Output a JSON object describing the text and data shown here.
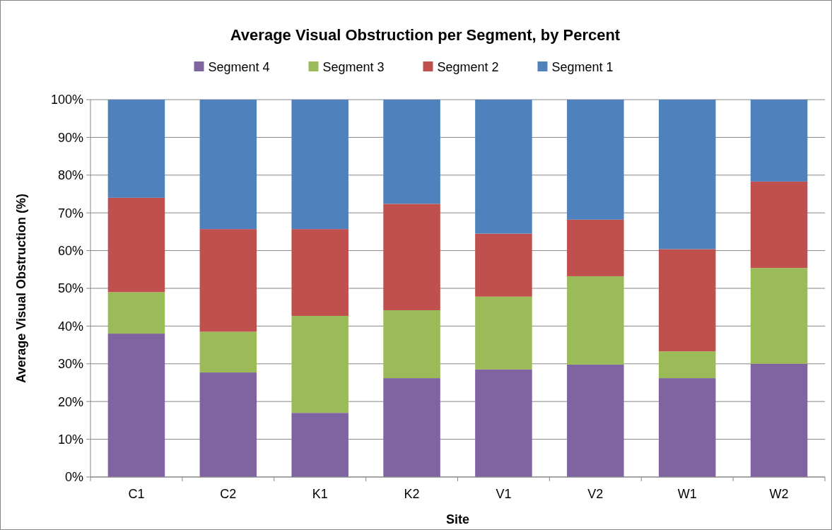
{
  "chart_data": {
    "type": "bar",
    "stacked": true,
    "title": "Average Visual Obstruction per Segment, by Percent",
    "xlabel": "Site",
    "ylabel": "Average Visual Obstruction (%)",
    "categories": [
      "C1",
      "C2",
      "K1",
      "K2",
      "V1",
      "V2",
      "W1",
      "W2"
    ],
    "series": [
      {
        "name": "Segment 4",
        "color": "#8064a2",
        "values": [
          38,
          27.7,
          17,
          26.2,
          28.5,
          29.8,
          26.2,
          30
        ]
      },
      {
        "name": "Segment 3",
        "color": "#9bbb59",
        "values": [
          11,
          10.8,
          25.7,
          18,
          19.3,
          23.4,
          7.1,
          25.4
        ]
      },
      {
        "name": "Segment 2",
        "color": "#c0504d",
        "values": [
          25,
          27.2,
          23,
          28.2,
          16.7,
          15,
          27.1,
          22.9
        ]
      },
      {
        "name": "Segment 1",
        "color": "#4f81bd",
        "values": [
          26,
          34.3,
          34.3,
          27.6,
          35.5,
          31.8,
          39.6,
          21.7
        ]
      }
    ],
    "ylim": [
      0,
      100
    ],
    "yticks": [
      {
        "value": 0,
        "label": "0%"
      },
      {
        "value": 10,
        "label": "10%"
      },
      {
        "value": 20,
        "label": "20%"
      },
      {
        "value": 30,
        "label": "30%"
      },
      {
        "value": 40,
        "label": "40%"
      },
      {
        "value": 50,
        "label": "50%"
      },
      {
        "value": 60,
        "label": "60%"
      },
      {
        "value": 70,
        "label": "70%"
      },
      {
        "value": 80,
        "label": "80%"
      },
      {
        "value": 90,
        "label": "90%"
      },
      {
        "value": 100,
        "label": "100%"
      }
    ],
    "grid": "y",
    "legend": "top"
  }
}
